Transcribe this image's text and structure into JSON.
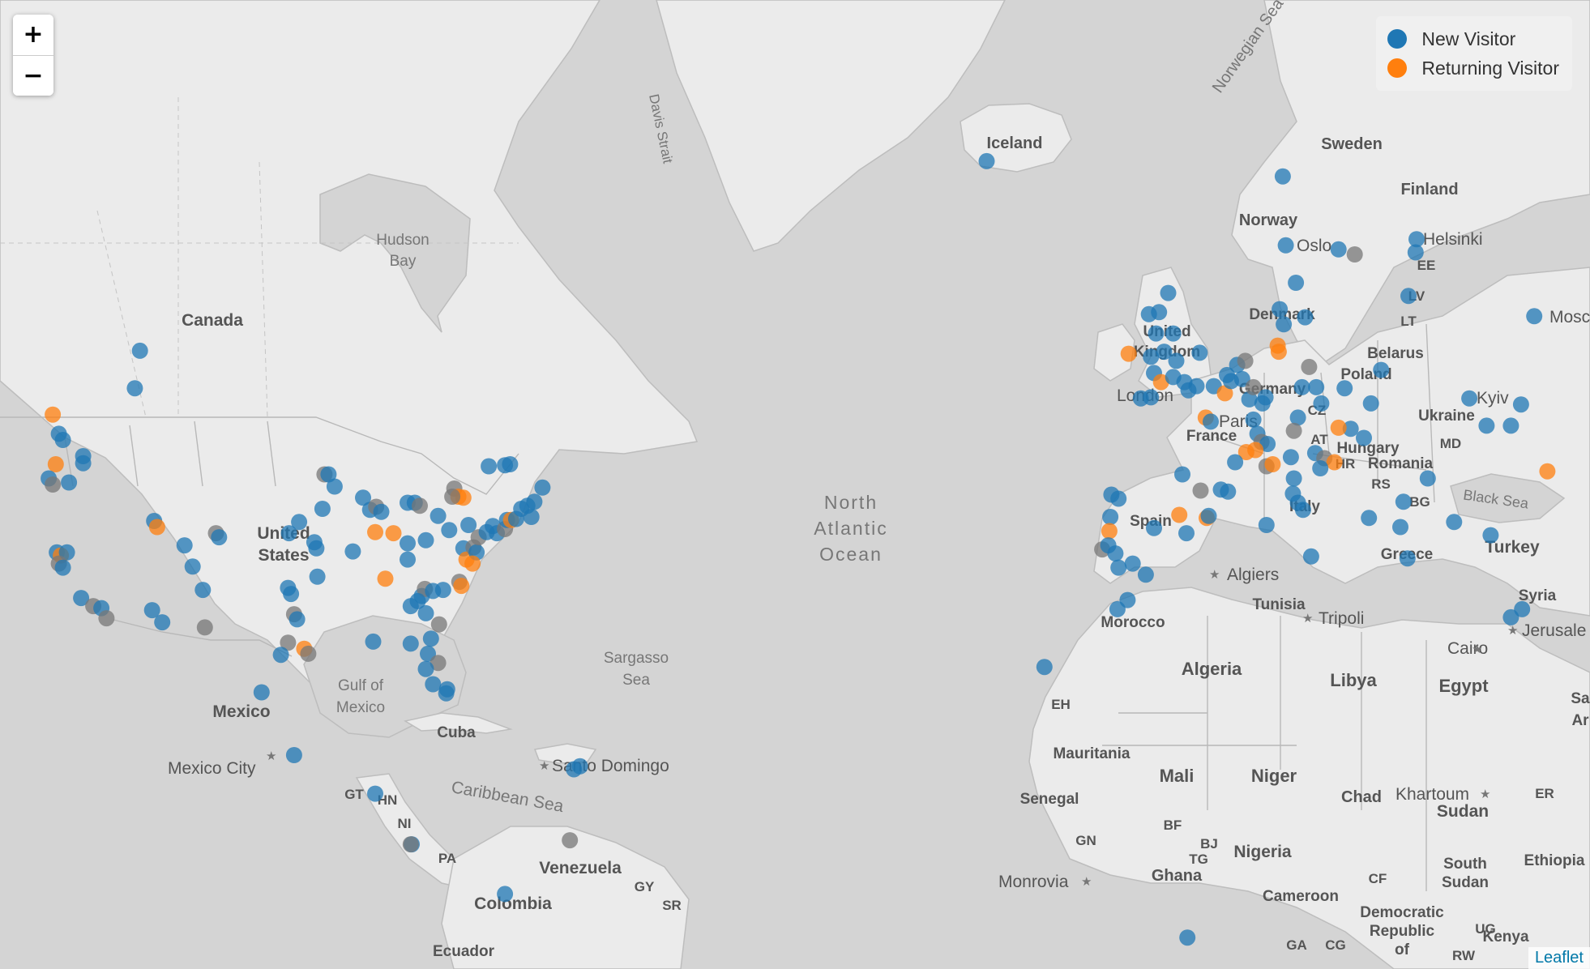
{
  "colors": {
    "new_visitor": "#1f77b4",
    "returning_visitor": "#ff7f0e",
    "dot_opacity": 0.75
  },
  "zoom_control": {
    "zoom_in_label": "+",
    "zoom_out_label": "−"
  },
  "legend": {
    "items": [
      {
        "label": "New Visitor",
        "color": "#1f77b4"
      },
      {
        "label": "Returning Visitor",
        "color": "#ff7f0e"
      }
    ]
  },
  "attribution": {
    "label": "Leaflet"
  },
  "map_labels": {
    "countries": [
      "Canada",
      "United",
      "States",
      "Mexico",
      "Cuba",
      "Venezuela",
      "Colombia",
      "Ecuador",
      "GT",
      "HN",
      "NI",
      "PA",
      "GY",
      "SR",
      "Iceland",
      "Norway",
      "Sweden",
      "Finland",
      "Denmark",
      "United",
      "Kingdom",
      "France",
      "Germany",
      "Spain",
      "Italy",
      "Poland",
      "Belarus",
      "Ukraine",
      "Hungary",
      "Romania",
      "Greece",
      "Turkey",
      "Syria",
      "LT",
      "LV",
      "EE",
      "CZ",
      "AT",
      "MD",
      "BG",
      "RS",
      "HR",
      "Morocco",
      "Algeria",
      "Tunisia",
      "Libya",
      "Egypt",
      "Mauritania",
      "Mali",
      "Niger",
      "Chad",
      "Sudan",
      "Senegal",
      "Nigeria",
      "Ghana",
      "Cameroon",
      "Ethiopia",
      "South",
      "Sudan",
      "Democratic",
      "Republic",
      "of",
      "Kenya",
      "UG",
      "RW",
      "CG",
      "GA",
      "CF",
      "ER",
      "BF",
      "BJ",
      "TG",
      "GN",
      "EH",
      "Sa",
      "Ar"
    ],
    "water": [
      "Hudson",
      "Bay",
      "Davis Strait",
      "Norwegian Sea",
      "North",
      "Atlantic",
      "Ocean",
      "Sargasso",
      "Sea",
      "Gulf of",
      "Mexico",
      "Caribbean Sea",
      "Black Sea"
    ],
    "cities": [
      "Mexico City",
      "Santo Domingo",
      "Oslo",
      "Helsinki",
      "London",
      "Paris",
      "Kyiv",
      "Mosc",
      "Algiers",
      "Tripoli",
      "Cairo",
      "Jerusale",
      "Khartoum",
      "Monrovia"
    ]
  }
}
